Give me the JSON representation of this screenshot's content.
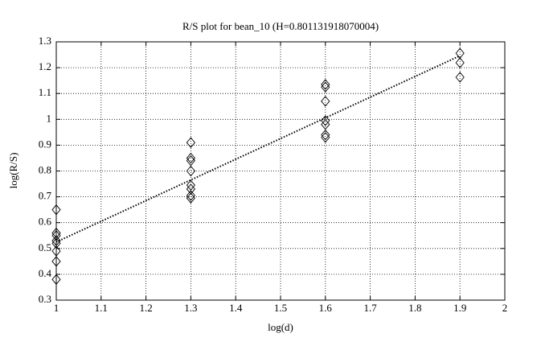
{
  "chart_data": {
    "type": "scatter",
    "title": "R/S plot for bean_10 (H=0.801131918070004)",
    "xlabel": "log(d)",
    "ylabel": "log(R/S)",
    "xlim": [
      1,
      2
    ],
    "ylim": [
      0.3,
      1.3
    ],
    "xticks": [
      1,
      1.1,
      1.2,
      1.3,
      1.4,
      1.5,
      1.6,
      1.7,
      1.8,
      1.9,
      2
    ],
    "yticks": [
      0.3,
      0.4,
      0.5,
      0.6,
      0.7,
      0.8,
      0.9,
      1,
      1.1,
      1.2,
      1.3
    ],
    "grid": true,
    "series": [
      {
        "marker": "diamond",
        "color": "#000000",
        "x": [
          1,
          1,
          1,
          1,
          1,
          1,
          1,
          1,
          1.3,
          1.3,
          1.3,
          1.3,
          1.3,
          1.3,
          1.3,
          1.3,
          1.6,
          1.6,
          1.6,
          1.6,
          1.6,
          1.6,
          1.6,
          1.9,
          1.9,
          1.9
        ],
        "values": [
          0.65,
          0.56,
          0.55,
          0.53,
          0.52,
          0.49,
          0.45,
          0.38,
          0.91,
          0.85,
          0.84,
          0.8,
          0.745,
          0.73,
          0.705,
          0.695,
          1.135,
          1.125,
          1.07,
          0.995,
          0.98,
          0.94,
          0.93,
          1.256,
          1.219,
          1.163
        ]
      },
      {
        "marker": "dotted-line",
        "color": "#000000",
        "x": [
          1,
          1.9
        ],
        "values": [
          0.525,
          1.246
        ]
      }
    ]
  }
}
